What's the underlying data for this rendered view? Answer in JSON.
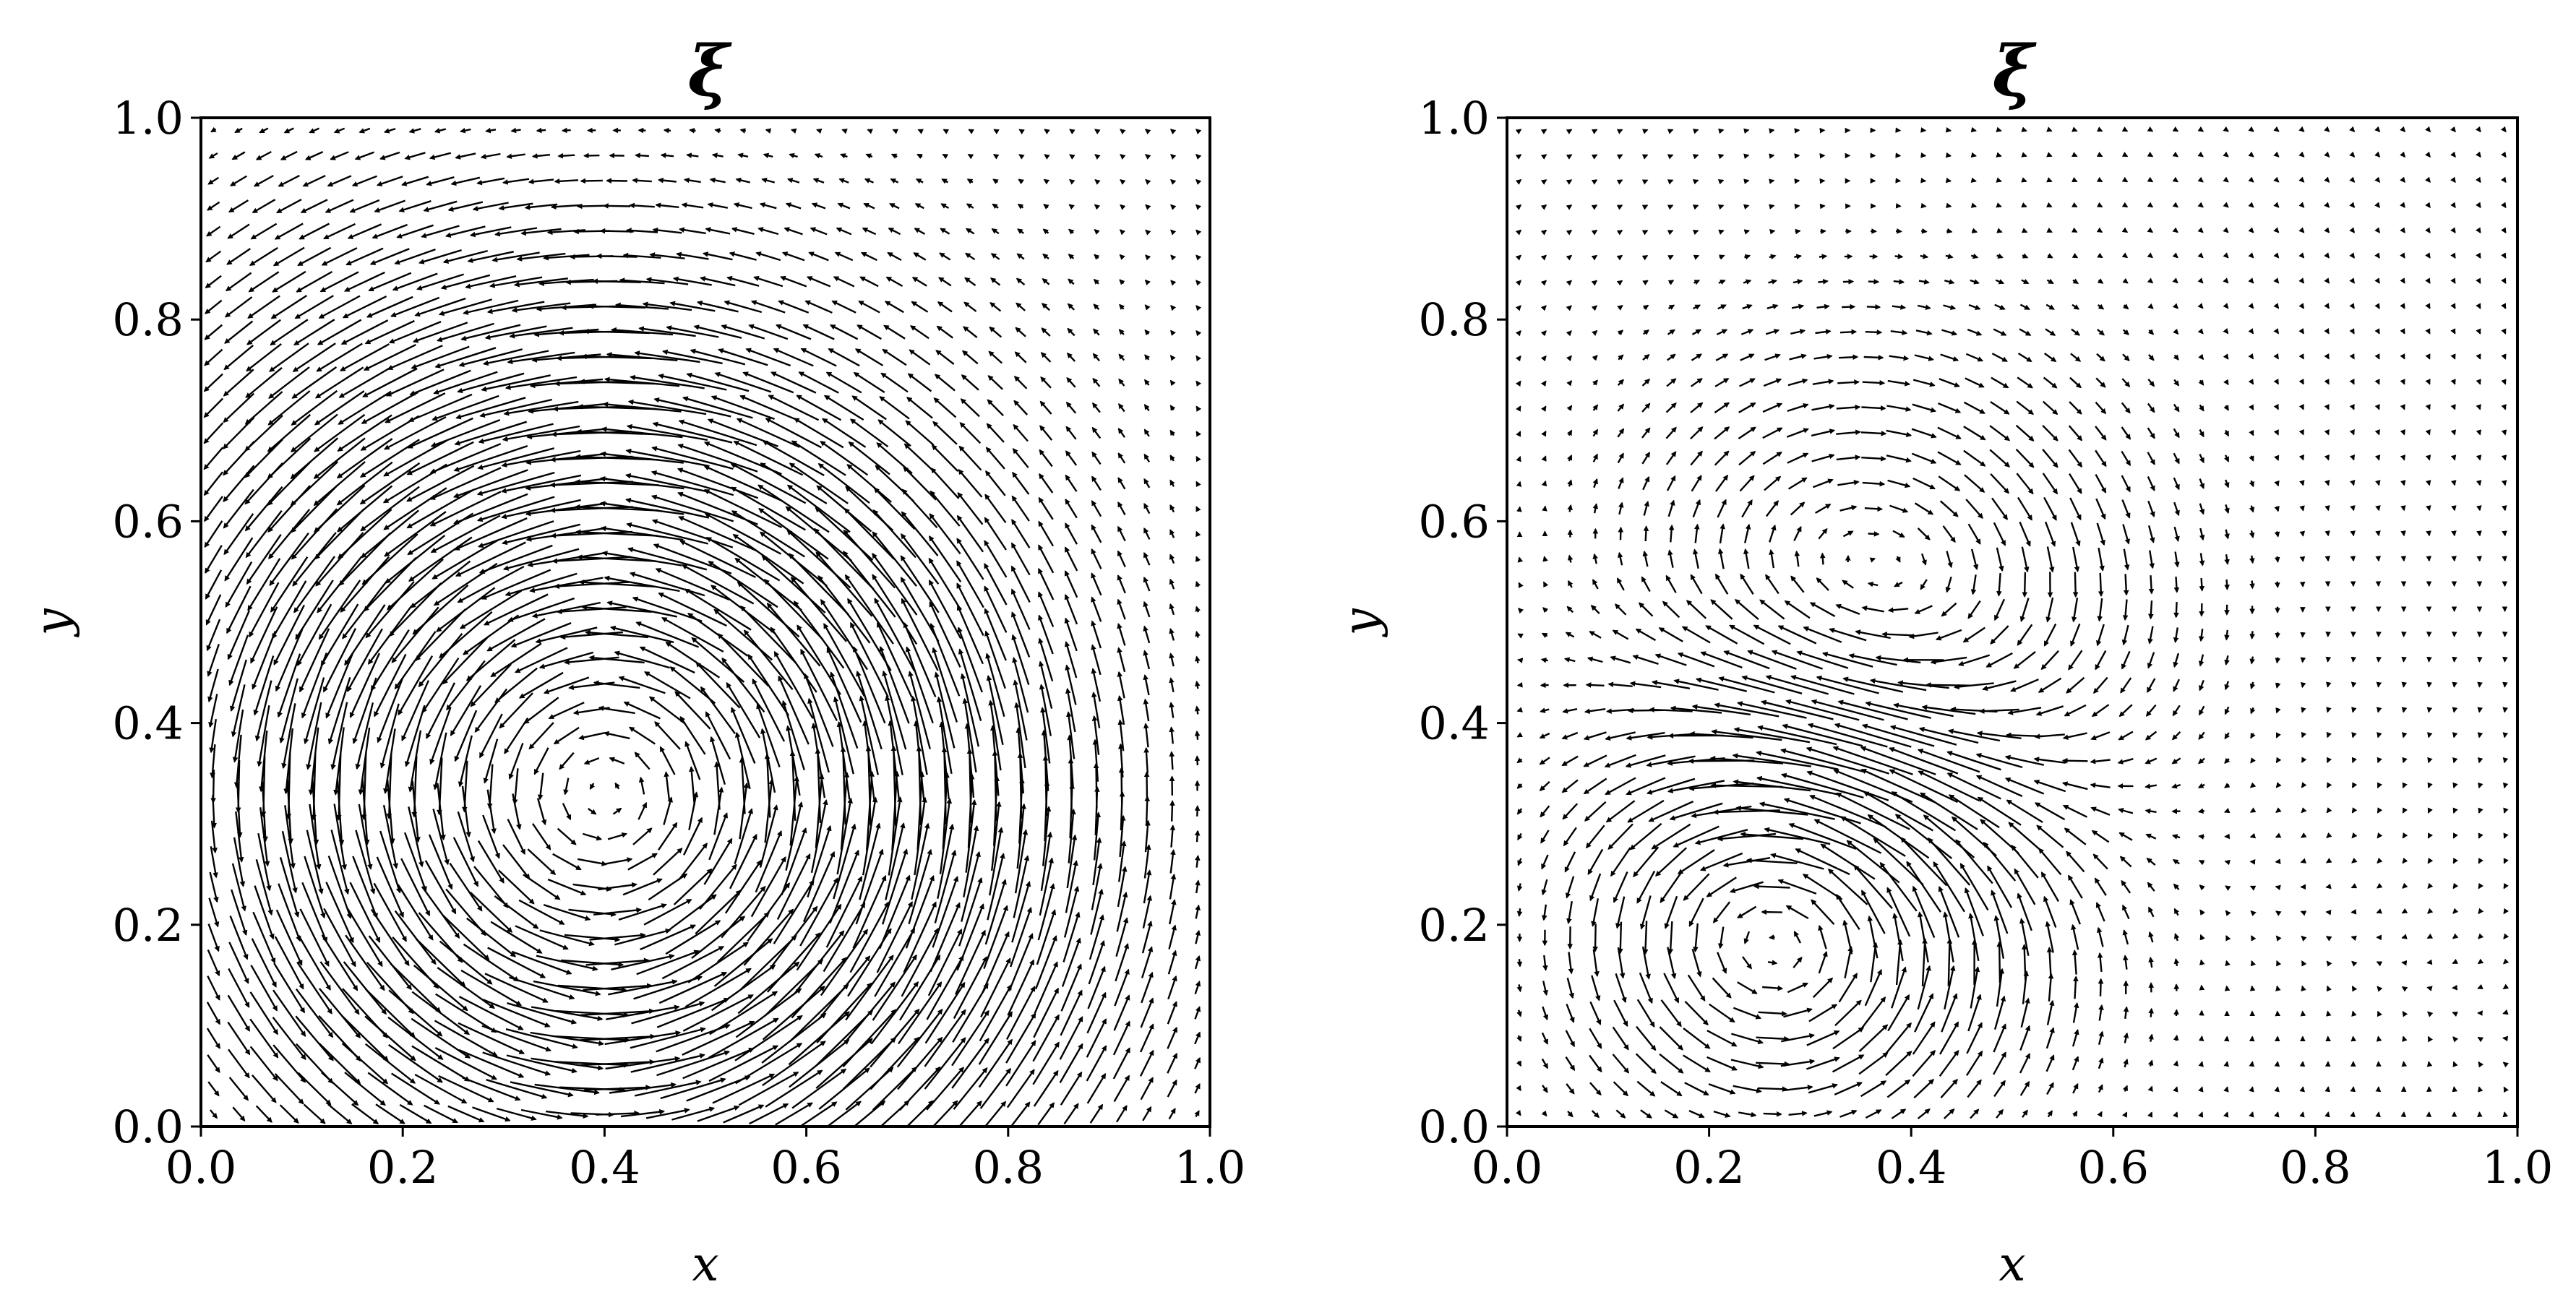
{
  "figure": {
    "title": "",
    "background": "#ffffff",
    "arrow_color": "#000000"
  },
  "chart_data": [
    {
      "type": "quiver",
      "title": "ξ",
      "xlabel": "x",
      "ylabel": "y",
      "xlim": [
        0.0,
        1.0
      ],
      "ylim": [
        0.0,
        1.0
      ],
      "xticks": [
        "0.0",
        "0.2",
        "0.4",
        "0.6",
        "0.8",
        "1.0"
      ],
      "yticks": [
        "0.0",
        "0.2",
        "0.4",
        "0.6",
        "0.8",
        "1.0"
      ],
      "grid": false,
      "legend": "none",
      "grid_resolution": [
        40,
        40
      ],
      "vortices": [
        {
          "center": [
            0.4,
            0.33
          ],
          "rotation": "counterclockwise",
          "description": "single dominant vortex, strongest flow near left and bottom walls"
        }
      ],
      "max_speed_region": "bottom wall (y ≈ 0.05–0.15) and left wall (x ≈ 0.05–0.10)",
      "weak_flow_region": "top-right corner"
    },
    {
      "type": "quiver",
      "title": "ξ",
      "xlabel": "x",
      "ylabel": "y",
      "xlim": [
        0.0,
        1.0
      ],
      "ylim": [
        0.0,
        1.0
      ],
      "xticks": [
        "0.0",
        "0.2",
        "0.4",
        "0.6",
        "0.8",
        "1.0"
      ],
      "yticks": [
        "0.0",
        "0.2",
        "0.4",
        "0.6",
        "0.8",
        "1.0"
      ],
      "grid": false,
      "legend": "none",
      "grid_resolution": [
        40,
        40
      ],
      "vortices": [
        {
          "center": [
            0.27,
            0.2
          ],
          "rotation": "counterclockwise",
          "description": "strong lower vortex"
        },
        {
          "center": [
            0.35,
            0.5
          ],
          "rotation": "clockwise",
          "description": "weaker upper vortex"
        }
      ],
      "max_speed_region": "lower-left region (x < 0.5, y < 0.35)",
      "weak_flow_region": "top band (y > 0.75) and right edge"
    }
  ]
}
